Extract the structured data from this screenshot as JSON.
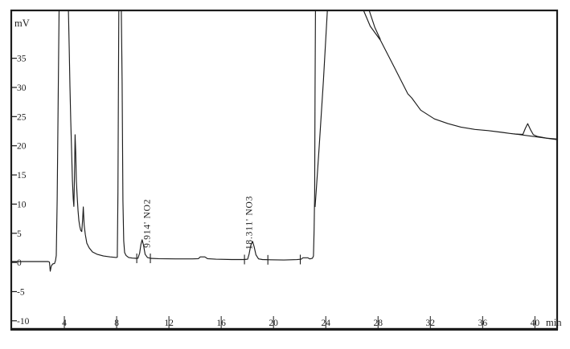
{
  "figure": {
    "background": "#ffffff",
    "frame_color": "#1c1c1c",
    "trace_color": "#1c1c1c",
    "y_axis_unit": "mV",
    "x_axis_unit": "min"
  },
  "chart_data": {
    "type": "line",
    "xlabel": "min",
    "ylabel": "mV",
    "xlim": [
      0,
      41.7
    ],
    "ylim": [
      -11.4,
      43.2
    ],
    "x_ticks": [
      4,
      8,
      12,
      16,
      20,
      24,
      28,
      32,
      36,
      40
    ],
    "y_ticks": [
      35,
      30,
      25,
      20,
      15,
      10,
      5,
      0,
      -5,
      -10
    ],
    "grid": false,
    "legend": false,
    "peaks": [
      {
        "name": "NO2",
        "retention_time_min": 9.914,
        "height_mV": 3.9,
        "label": "9.914'  NO2",
        "label_t": 10.4,
        "label_v_bottom": 2.5
      },
      {
        "name": "NO3",
        "retention_time_min": 18.311,
        "height_mV": 3.6,
        "label": "18.311'  NO3",
        "label_t": 18.2,
        "label_v_bottom": 2.2
      }
    ],
    "integration_marks": [
      {
        "t": 9.54,
        "v": 0.7
      },
      {
        "t": 10.58,
        "v": 0.7
      },
      {
        "t": 17.78,
        "v": 0.5
      },
      {
        "t": 19.57,
        "v": 0.45
      },
      {
        "t": 22.05,
        "v": 0.5
      }
    ],
    "series": [
      {
        "name": "signal",
        "points": [
          [
            0,
            0.15
          ],
          [
            1.2,
            0.15
          ],
          [
            2.3,
            0.15
          ],
          [
            2.77,
            0.15
          ],
          [
            2.86,
            0.05
          ],
          [
            2.92,
            -1.5
          ],
          [
            3.0,
            -0.6
          ],
          [
            3.12,
            -0.25
          ],
          [
            3.25,
            -0.18
          ],
          [
            3.32,
            0.3
          ],
          [
            3.38,
            1.2
          ],
          [
            3.45,
            10.6
          ],
          [
            3.51,
            24.3
          ],
          [
            3.57,
            36.7
          ],
          [
            3.6,
            43.2
          ],
          [
            4.31,
            43.2
          ],
          [
            4.37,
            36.7
          ],
          [
            4.43,
            30.2
          ],
          [
            4.49,
            24.3
          ],
          [
            4.55,
            19.4
          ],
          [
            4.62,
            14.0
          ],
          [
            4.68,
            10.9
          ],
          [
            4.73,
            9.6
          ],
          [
            4.78,
            15.2
          ],
          [
            4.82,
            21.9
          ],
          [
            4.87,
            18.8
          ],
          [
            4.92,
            13.9
          ],
          [
            4.98,
            11.3
          ],
          [
            5.05,
            8.8
          ],
          [
            5.11,
            7.2
          ],
          [
            5.18,
            6.2
          ],
          [
            5.25,
            5.5
          ],
          [
            5.33,
            5.3
          ],
          [
            5.4,
            7.4
          ],
          [
            5.45,
            9.5
          ],
          [
            5.52,
            6.4
          ],
          [
            5.6,
            4.8
          ],
          [
            5.72,
            3.3
          ],
          [
            5.9,
            2.5
          ],
          [
            6.15,
            1.8
          ],
          [
            6.5,
            1.4
          ],
          [
            7.0,
            1.1
          ],
          [
            7.5,
            0.95
          ],
          [
            7.97,
            0.85
          ],
          [
            8.05,
            0.9
          ],
          [
            8.1,
            12
          ],
          [
            8.14,
            30
          ],
          [
            8.17,
            43.2
          ],
          [
            8.36,
            43.2
          ],
          [
            8.42,
            31
          ],
          [
            8.48,
            10.6
          ],
          [
            8.54,
            3.7
          ],
          [
            8.61,
            1.7
          ],
          [
            8.72,
            1.2
          ],
          [
            8.92,
            0.85
          ],
          [
            9.2,
            0.75
          ],
          [
            9.5,
            0.7
          ],
          [
            9.63,
            0.72
          ],
          [
            9.76,
            1.6
          ],
          [
            9.86,
            3.1
          ],
          [
            9.95,
            3.9
          ],
          [
            10.06,
            2.9
          ],
          [
            10.18,
            1.4
          ],
          [
            10.36,
            0.85
          ],
          [
            10.6,
            0.7
          ],
          [
            11.2,
            0.65
          ],
          [
            12.5,
            0.6
          ],
          [
            13.8,
            0.6
          ],
          [
            14.25,
            0.65
          ],
          [
            14.4,
            0.95
          ],
          [
            14.75,
            0.95
          ],
          [
            14.95,
            0.65
          ],
          [
            15.6,
            0.55
          ],
          [
            16.8,
            0.5
          ],
          [
            17.75,
            0.5
          ],
          [
            18.02,
            0.55
          ],
          [
            18.13,
            1.4
          ],
          [
            18.26,
            2.9
          ],
          [
            18.4,
            3.6
          ],
          [
            18.52,
            2.7
          ],
          [
            18.66,
            1.3
          ],
          [
            18.86,
            0.6
          ],
          [
            19.15,
            0.5
          ],
          [
            19.8,
            0.45
          ],
          [
            20.8,
            0.42
          ],
          [
            21.8,
            0.48
          ],
          [
            22.12,
            0.55
          ],
          [
            22.25,
            0.8
          ],
          [
            22.62,
            0.8
          ],
          [
            22.78,
            0.6
          ],
          [
            22.98,
            0.72
          ],
          [
            23.06,
            1.1
          ],
          [
            23.11,
            5.5
          ],
          [
            23.15,
            12
          ],
          [
            23.18,
            30
          ],
          [
            23.21,
            43.2
          ],
          [
            26.89,
            43.2
          ],
          [
            27.4,
            40.5
          ],
          [
            28.18,
            38.1
          ],
          [
            29.23,
            33.5
          ],
          [
            30.28,
            28.9
          ],
          [
            30.58,
            28.2
          ],
          [
            31.26,
            26.1
          ],
          [
            32.31,
            24.6
          ],
          [
            33.35,
            23.8
          ],
          [
            34.34,
            23.2
          ],
          [
            35.4,
            22.8
          ],
          [
            36.43,
            22.6
          ],
          [
            37.5,
            22.3
          ],
          [
            38.46,
            22.0
          ],
          [
            39.08,
            21.95
          ],
          [
            39.27,
            23.0
          ],
          [
            39.45,
            23.8
          ],
          [
            39.65,
            22.8
          ],
          [
            39.88,
            21.9
          ],
          [
            40.2,
            21.6
          ],
          [
            40.9,
            21.3
          ],
          [
            41.7,
            21.15
          ]
        ]
      },
      {
        "name": "clipped-peak-edge",
        "points": [
          [
            24.12,
            43.2
          ],
          [
            23.82,
            31.2
          ],
          [
            23.51,
            20.2
          ],
          [
            23.26,
            12.0
          ],
          [
            23.18,
            9.5
          ]
        ]
      },
      {
        "name": "tail-second-line",
        "points": [
          [
            27.32,
            43.2
          ],
          [
            27.75,
            40.3
          ],
          [
            28.18,
            38.2
          ]
        ]
      },
      {
        "name": "late-peak-baseline",
        "points": [
          [
            38.4,
            22.05
          ],
          [
            41.7,
            21.05
          ]
        ]
      }
    ]
  },
  "layout_note": "retention-time labels are rotated 90 degrees counter-clockwise above NO2 and NO3 peaks"
}
